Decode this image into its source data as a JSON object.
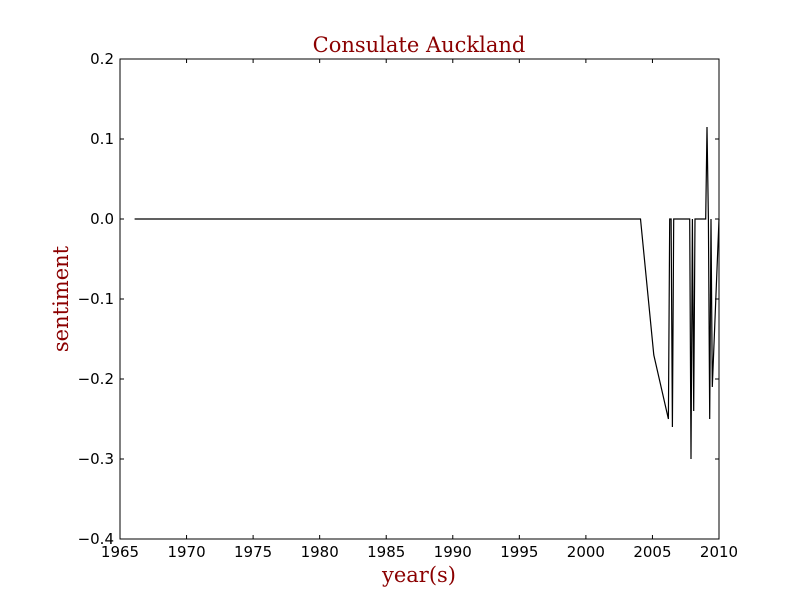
{
  "chart_data": {
    "type": "line",
    "title": "Consulate Auckland",
    "xlabel": "year(s)",
    "ylabel": "sentiment",
    "xlim": [
      1965,
      2010
    ],
    "ylim": [
      -0.4,
      0.2
    ],
    "x_ticks": [
      "1965",
      "1970",
      "1975",
      "1980",
      "1985",
      "1990",
      "1995",
      "2000",
      "2005",
      "2010"
    ],
    "y_ticks": [
      "−0.4",
      "−0.3",
      "−0.2",
      "−0.1",
      "0.0",
      "0.1",
      "0.2"
    ],
    "grid": false,
    "legend": "none",
    "series": [
      {
        "x": [
          1966.1,
          2004.1,
          2005.1,
          2006.2,
          2006.3,
          2006.4,
          2006.5,
          2006.6,
          2007.8,
          2007.9,
          2008.0,
          2008.1,
          2008.2,
          2008.3,
          2009.0,
          2009.1,
          2009.2,
          2009.3,
          2009.4,
          2009.5,
          2010.0
        ],
        "y": [
          0.0,
          0.0,
          -0.17,
          -0.25,
          0.0,
          0.0,
          -0.26,
          0.0,
          0.0,
          -0.3,
          0.0,
          -0.24,
          0.0,
          0.0,
          0.0,
          0.115,
          0.0,
          -0.25,
          0.0,
          -0.21,
          0.0
        ]
      }
    ],
    "colors": {
      "title": "#8b0000",
      "axis_label": "#8b0000",
      "line": "#000000",
      "axes": "#000000"
    }
  }
}
